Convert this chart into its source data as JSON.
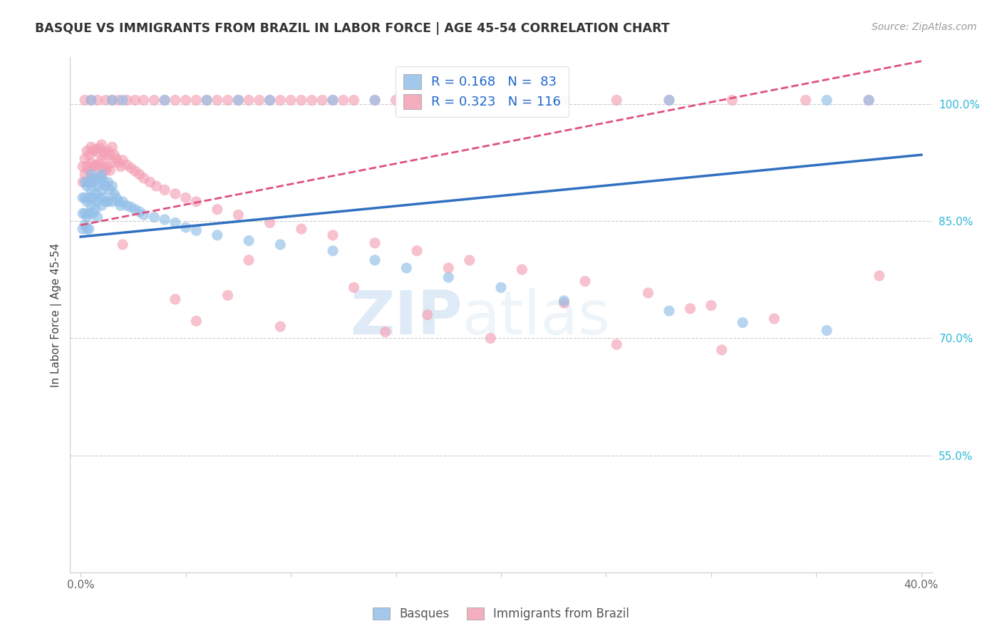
{
  "title": "BASQUE VS IMMIGRANTS FROM BRAZIL IN LABOR FORCE | AGE 45-54 CORRELATION CHART",
  "source": "Source: ZipAtlas.com",
  "ylabel": "In Labor Force | Age 45-54",
  "xlim": [
    -0.005,
    0.405
  ],
  "ylim": [
    0.4,
    1.06
  ],
  "ytick_positions": [
    0.55,
    0.7,
    0.85,
    1.0
  ],
  "ytick_labels": [
    "55.0%",
    "70.0%",
    "85.0%",
    "100.0%"
  ],
  "blue_color": "#92bfe8",
  "pink_color": "#f4a0b5",
  "blue_line_color": "#3070c0",
  "pink_line_color": "#e05080",
  "blue_R": 0.168,
  "blue_N": 83,
  "pink_R": 0.323,
  "pink_N": 116,
  "legend_label_blue": "Basques",
  "legend_label_pink": "Immigrants from Brazil",
  "watermark_zip": "ZIP",
  "watermark_atlas": "atlas",
  "blue_line_x0": 0.0,
  "blue_line_y0": 0.83,
  "blue_line_x1": 0.4,
  "blue_line_y1": 0.935,
  "pink_line_x0": 0.0,
  "pink_line_y0": 0.845,
  "pink_line_x1": 0.4,
  "pink_line_y1": 1.055,
  "blue_dots_x": [
    0.001,
    0.001,
    0.001,
    0.002,
    0.002,
    0.002,
    0.002,
    0.003,
    0.003,
    0.003,
    0.003,
    0.004,
    0.004,
    0.004,
    0.004,
    0.005,
    0.005,
    0.005,
    0.006,
    0.006,
    0.006,
    0.007,
    0.007,
    0.007,
    0.008,
    0.008,
    0.008,
    0.009,
    0.009,
    0.01,
    0.01,
    0.01,
    0.011,
    0.011,
    0.012,
    0.012,
    0.013,
    0.013,
    0.014,
    0.015,
    0.015,
    0.016,
    0.017,
    0.018,
    0.019,
    0.02,
    0.022,
    0.024,
    0.026,
    0.028,
    0.03,
    0.035,
    0.04,
    0.045,
    0.05,
    0.055,
    0.065,
    0.08,
    0.095,
    0.12,
    0.14,
    0.155,
    0.175,
    0.2,
    0.23,
    0.28,
    0.315,
    0.355,
    0.005,
    0.015,
    0.02,
    0.04,
    0.06,
    0.075,
    0.09,
    0.12,
    0.14,
    0.16,
    0.19,
    0.28,
    0.355,
    0.375
  ],
  "blue_dots_y": [
    0.88,
    0.86,
    0.84,
    0.9,
    0.88,
    0.86,
    0.845,
    0.895,
    0.875,
    0.855,
    0.84,
    0.9,
    0.88,
    0.86,
    0.84,
    0.91,
    0.89,
    0.87,
    0.9,
    0.88,
    0.86,
    0.905,
    0.885,
    0.865,
    0.895,
    0.875,
    0.855,
    0.905,
    0.88,
    0.91,
    0.89,
    0.87,
    0.9,
    0.88,
    0.895,
    0.875,
    0.9,
    0.875,
    0.89,
    0.895,
    0.875,
    0.885,
    0.88,
    0.875,
    0.87,
    0.875,
    0.87,
    0.868,
    0.865,
    0.862,
    0.858,
    0.855,
    0.852,
    0.848,
    0.842,
    0.838,
    0.832,
    0.825,
    0.82,
    0.812,
    0.8,
    0.79,
    0.778,
    0.765,
    0.748,
    0.735,
    0.72,
    0.71,
    1.005,
    1.005,
    1.005,
    1.005,
    1.005,
    1.005,
    1.005,
    1.005,
    1.005,
    1.005,
    1.005,
    1.005,
    1.005,
    1.005
  ],
  "pink_dots_x": [
    0.001,
    0.001,
    0.002,
    0.002,
    0.003,
    0.003,
    0.003,
    0.004,
    0.004,
    0.005,
    0.005,
    0.005,
    0.006,
    0.006,
    0.006,
    0.007,
    0.007,
    0.008,
    0.008,
    0.009,
    0.009,
    0.01,
    0.01,
    0.01,
    0.011,
    0.011,
    0.012,
    0.012,
    0.013,
    0.013,
    0.014,
    0.014,
    0.015,
    0.015,
    0.016,
    0.017,
    0.018,
    0.019,
    0.02,
    0.022,
    0.024,
    0.026,
    0.028,
    0.03,
    0.033,
    0.036,
    0.04,
    0.045,
    0.05,
    0.055,
    0.065,
    0.075,
    0.09,
    0.105,
    0.12,
    0.14,
    0.16,
    0.185,
    0.21,
    0.24,
    0.27,
    0.3,
    0.33,
    0.002,
    0.005,
    0.008,
    0.012,
    0.015,
    0.018,
    0.022,
    0.026,
    0.03,
    0.035,
    0.04,
    0.045,
    0.05,
    0.055,
    0.06,
    0.065,
    0.07,
    0.075,
    0.08,
    0.085,
    0.09,
    0.095,
    0.1,
    0.105,
    0.11,
    0.115,
    0.12,
    0.125,
    0.13,
    0.14,
    0.15,
    0.16,
    0.175,
    0.19,
    0.21,
    0.23,
    0.255,
    0.28,
    0.31,
    0.345,
    0.375,
    0.02,
    0.08,
    0.175,
    0.38,
    0.13,
    0.07,
    0.045,
    0.23,
    0.29,
    0.165,
    0.055,
    0.095,
    0.145,
    0.195,
    0.255,
    0.305
  ],
  "pink_dots_y": [
    0.92,
    0.9,
    0.93,
    0.91,
    0.94,
    0.92,
    0.9,
    0.935,
    0.915,
    0.945,
    0.925,
    0.905,
    0.94,
    0.92,
    0.9,
    0.942,
    0.922,
    0.938,
    0.918,
    0.944,
    0.924,
    0.948,
    0.928,
    0.908,
    0.938,
    0.918,
    0.935,
    0.915,
    0.94,
    0.92,
    0.935,
    0.915,
    0.945,
    0.925,
    0.935,
    0.93,
    0.925,
    0.92,
    0.928,
    0.922,
    0.918,
    0.914,
    0.91,
    0.905,
    0.9,
    0.895,
    0.89,
    0.885,
    0.88,
    0.875,
    0.865,
    0.858,
    0.848,
    0.84,
    0.832,
    0.822,
    0.812,
    0.8,
    0.788,
    0.773,
    0.758,
    0.742,
    0.725,
    1.005,
    1.005,
    1.005,
    1.005,
    1.005,
    1.005,
    1.005,
    1.005,
    1.005,
    1.005,
    1.005,
    1.005,
    1.005,
    1.005,
    1.005,
    1.005,
    1.005,
    1.005,
    1.005,
    1.005,
    1.005,
    1.005,
    1.005,
    1.005,
    1.005,
    1.005,
    1.005,
    1.005,
    1.005,
    1.005,
    1.005,
    1.005,
    1.005,
    1.005,
    1.005,
    1.005,
    1.005,
    1.005,
    1.005,
    1.005,
    1.005,
    0.82,
    0.8,
    0.79,
    0.78,
    0.765,
    0.755,
    0.75,
    0.745,
    0.738,
    0.73,
    0.722,
    0.715,
    0.708,
    0.7,
    0.692,
    0.685
  ]
}
